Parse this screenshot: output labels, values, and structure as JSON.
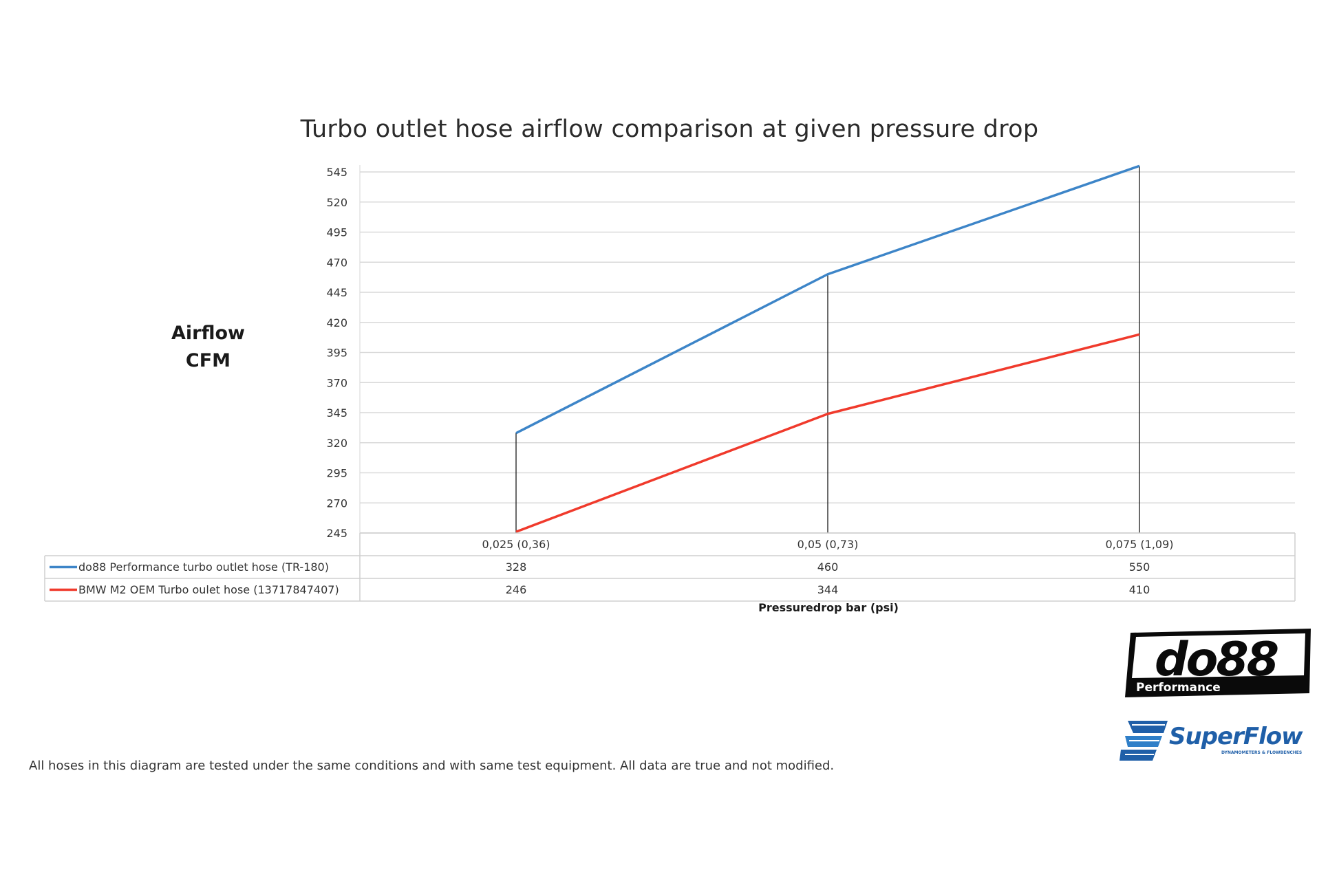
{
  "chart_data": {
    "type": "line",
    "title": "Turbo outlet hose airflow comparison at given pressure drop",
    "ylabel": [
      "Airflow",
      "CFM"
    ],
    "xlabel": "Pressuredrop bar (psi)",
    "categories": [
      "0,025 (0,36)",
      "0,05 (0,73)",
      "0,075 (1,09)"
    ],
    "ylim": [
      245,
      545
    ],
    "yticks": [
      245,
      270,
      295,
      320,
      345,
      370,
      395,
      420,
      445,
      470,
      495,
      520,
      545
    ],
    "grid": true,
    "legend_placement": "data-table-below",
    "series": [
      {
        "name": "do88 Performance turbo outlet hose (TR-180)",
        "values": [
          328,
          460,
          550
        ],
        "color": "#3d85c8"
      },
      {
        "name": "BMW M2 OEM Turbo oulet hose (13717847407)",
        "values": [
          246,
          344,
          410
        ],
        "color": "#f03a2c"
      }
    ]
  },
  "footnote": "All hoses in this diagram are tested under the same conditions and with same test equipment. All data are true and not modified.",
  "logos": {
    "do88": {
      "main": "do88",
      "sub": "Performance"
    },
    "superflow": {
      "main": "SuperFlow",
      "sub": "DYNAMOMETERS & FLOWBENCHES"
    }
  }
}
